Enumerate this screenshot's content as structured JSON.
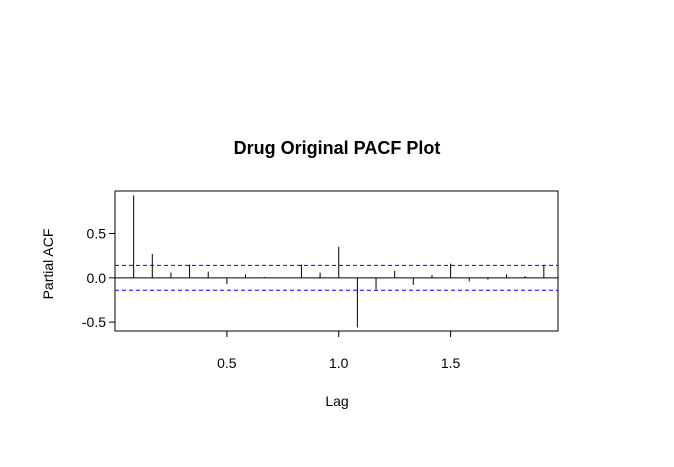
{
  "chart_data": {
    "type": "bar",
    "title": "Drug Original PACF Plot",
    "xlabel": "Lag",
    "ylabel": "Partial ACF",
    "xlim": [
      0.0,
      1.98
    ],
    "ylim": [
      -0.6,
      0.98
    ],
    "xticks": [
      {
        "value": 0.5,
        "label": "0.5"
      },
      {
        "value": 1.0,
        "label": "1.0"
      },
      {
        "value": 1.5,
        "label": "1.5"
      }
    ],
    "yticks": [
      {
        "value": 0.5,
        "label": "0.5"
      },
      {
        "value": 0.0,
        "label": "0.0"
      },
      {
        "value": -0.5,
        "label": "-0.5"
      }
    ],
    "confidence_bounds": [
      0.14,
      -0.14
    ],
    "confidence_color": "#0000ff",
    "lags": [
      0.0833,
      0.1667,
      0.25,
      0.3333,
      0.4167,
      0.5,
      0.5833,
      0.6667,
      0.75,
      0.8333,
      0.9167,
      1.0,
      1.0833,
      1.1667,
      1.25,
      1.3333,
      1.4167,
      1.5,
      1.5833,
      1.6667,
      1.75,
      1.8333,
      1.9167
    ],
    "values": [
      0.93,
      0.27,
      0.06,
      0.15,
      0.07,
      -0.07,
      0.04,
      0.01,
      0.0,
      0.15,
      0.06,
      0.35,
      -0.56,
      -0.13,
      0.08,
      -0.08,
      0.03,
      0.16,
      -0.04,
      -0.02,
      0.04,
      0.02,
      0.14
    ],
    "grid": false
  }
}
